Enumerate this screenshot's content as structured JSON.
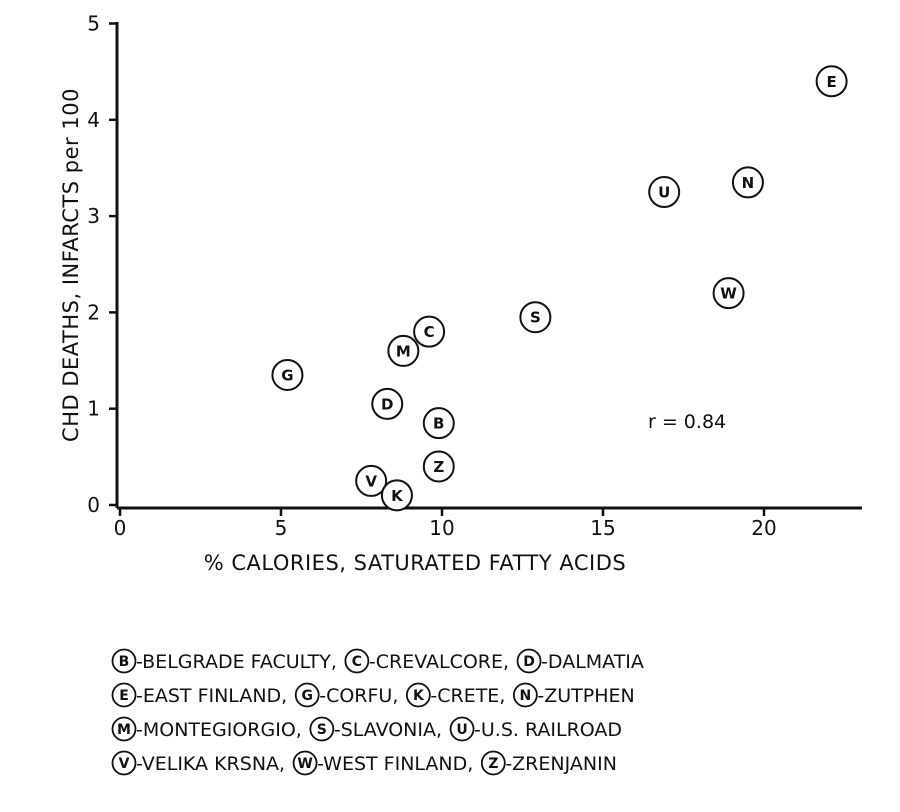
{
  "chart_data": {
    "type": "scatter",
    "xlabel": "% CALORIES, SATURATED FATTY ACIDS",
    "ylabel": "CHD DEATHS, INFARCTS per 100",
    "xlim": [
      0,
      23
    ],
    "ylim": [
      0,
      5
    ],
    "x_ticks": [
      0,
      5,
      10,
      15,
      20
    ],
    "x_tick_labels": [
      "0",
      "5",
      "10",
      "15",
      "20"
    ],
    "y_ticks": [
      0,
      1,
      2,
      3,
      4,
      5
    ],
    "y_tick_labels": [
      "0",
      "1",
      "2",
      "3",
      "4",
      "5"
    ],
    "grid": false,
    "points": [
      {
        "label": "E",
        "x": 22.1,
        "y": 4.4
      },
      {
        "label": "N",
        "x": 19.5,
        "y": 3.35
      },
      {
        "label": "U",
        "x": 16.9,
        "y": 3.25
      },
      {
        "label": "W",
        "x": 18.9,
        "y": 2.2
      },
      {
        "label": "S",
        "x": 12.9,
        "y": 1.95
      },
      {
        "label": "C",
        "x": 9.6,
        "y": 1.8
      },
      {
        "label": "M",
        "x": 8.8,
        "y": 1.6
      },
      {
        "label": "G",
        "x": 5.2,
        "y": 1.35
      },
      {
        "label": "D",
        "x": 8.3,
        "y": 1.05
      },
      {
        "label": "B",
        "x": 9.9,
        "y": 0.85
      },
      {
        "label": "Z",
        "x": 9.9,
        "y": 0.4
      },
      {
        "label": "V",
        "x": 7.8,
        "y": 0.25
      },
      {
        "label": "K",
        "x": 8.6,
        "y": 0.1
      }
    ],
    "annotation": "r = 0.84",
    "legend_placement": "bottom",
    "legend_lines": [
      [
        {
          "key": "B",
          "text": "-BELGRADE FACULTY,"
        },
        {
          "key": "C",
          "text": "-CREVALCORE,"
        },
        {
          "key": "D",
          "text": "-DALMATIA"
        }
      ],
      [
        {
          "key": "E",
          "text": "-EAST FINLAND,"
        },
        {
          "key": "G",
          "text": "-CORFU,"
        },
        {
          "key": "K",
          "text": "-CRETE,"
        },
        {
          "key": "N",
          "text": "-ZUTPHEN"
        }
      ],
      [
        {
          "key": "M",
          "text": "-MONTEGIORGIO,"
        },
        {
          "key": "S",
          "text": "-SLAVONIA,"
        },
        {
          "key": "U",
          "text": "-U.S. RAILROAD"
        }
      ],
      [
        {
          "key": "V",
          "text": "-VELIKA KRSNA,"
        },
        {
          "key": "W",
          "text": "-WEST FINLAND,"
        },
        {
          "key": "Z",
          "text": "-ZRENJANIN"
        }
      ]
    ]
  }
}
